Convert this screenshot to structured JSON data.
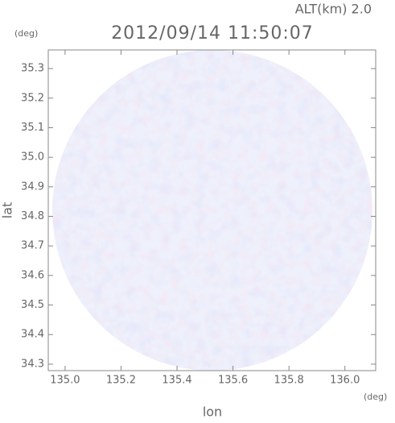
{
  "chart_data": {
    "type": "radar-map",
    "title": "2012/09/14 11:50:07",
    "annotation": "ALT(km) 2.0",
    "x_label": "lon",
    "y_label": "lat",
    "x_unit": "(deg)",
    "y_unit": "(deg)",
    "xlim": [
      134.94,
      136.11
    ],
    "ylim": [
      34.278,
      35.363
    ],
    "xticks": [
      {
        "value": 135,
        "label": "135.0"
      },
      135.2,
      135.4,
      135.6,
      135.8,
      {
        "value": 136,
        "label": "136.0"
      }
    ],
    "yticks": [
      34.3,
      34.4,
      34.5,
      34.6,
      34.7,
      34.8,
      34.9,
      {
        "value": 35,
        "label": "35.0"
      },
      35.1,
      35.2,
      35.3
    ]
  }
}
